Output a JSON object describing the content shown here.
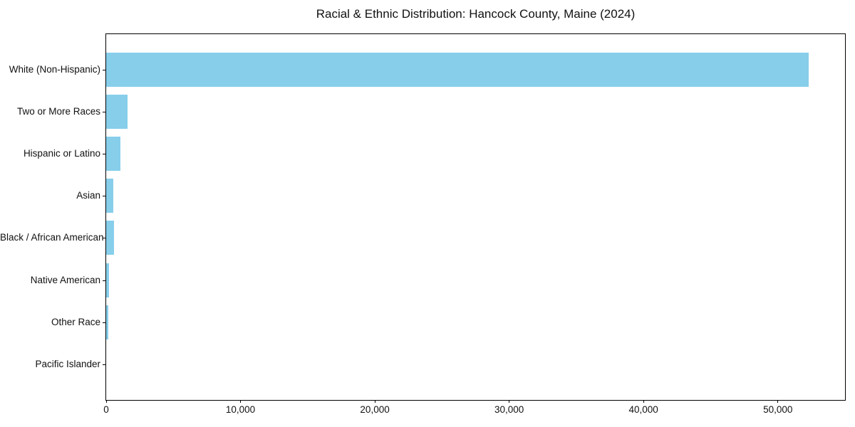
{
  "chart_data": {
    "type": "bar",
    "orientation": "horizontal",
    "title": "Racial & Ethnic Distribution: Hancock County, Maine (2024)",
    "categories": [
      "White (Non-Hispanic)",
      "Two or More Races",
      "Hispanic or Latino",
      "Asian",
      "Black / African American",
      "Native American",
      "Other Race",
      "Pacific Islander"
    ],
    "values": [
      52300,
      1600,
      1060,
      530,
      585,
      215,
      170,
      0
    ],
    "xlabel": "",
    "ylabel": "",
    "xlim": [
      0,
      55000
    ],
    "xticks": {
      "values": [
        0,
        10000,
        20000,
        30000,
        40000,
        50000
      ],
      "labels": [
        "0",
        "10,000",
        "20,000",
        "30,000",
        "40,000",
        "50,000"
      ]
    },
    "bar_color": "#87CEEB",
    "frame_color": "#000000",
    "text_color": "#111111",
    "grid": false,
    "legend": null
  }
}
